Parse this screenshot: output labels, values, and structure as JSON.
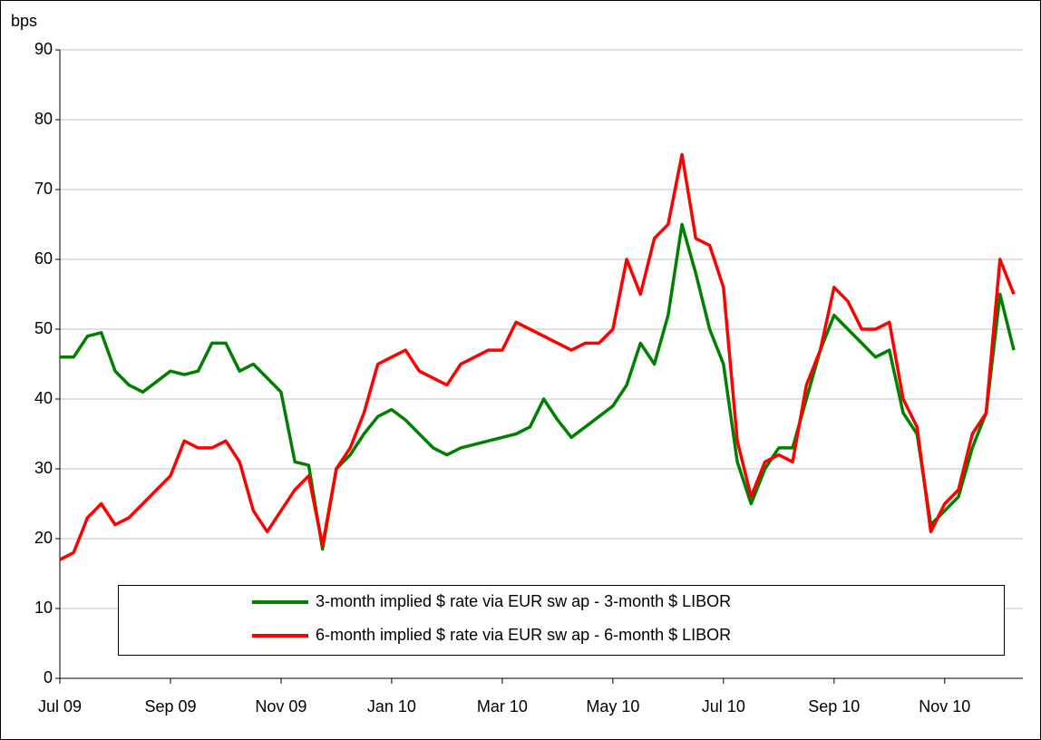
{
  "chart_data": {
    "type": "line",
    "y_label": "bps",
    "categories": [
      "Jul 09",
      null,
      null,
      null,
      null,
      null,
      null,
      null,
      "Sep 09",
      null,
      null,
      null,
      null,
      null,
      null,
      null,
      "Nov 09",
      null,
      null,
      null,
      null,
      null,
      null,
      null,
      "Jan 10",
      null,
      null,
      null,
      null,
      null,
      null,
      null,
      "Mar 10",
      null,
      null,
      null,
      null,
      null,
      null,
      null,
      "May 10",
      null,
      null,
      null,
      null,
      null,
      null,
      null,
      "Jul 10",
      null,
      null,
      null,
      null,
      null,
      null,
      null,
      "Sep 10",
      null,
      null,
      null,
      null,
      null,
      null,
      null,
      "Nov 10",
      null,
      null,
      null,
      null,
      null
    ],
    "series": [
      {
        "name": "3-month implied $ rate via EUR sw ap - 3-month $ LIBOR",
        "color": "#008000",
        "values": [
          46,
          46,
          49,
          49.5,
          44,
          42,
          41,
          42.5,
          44,
          43.5,
          44,
          48,
          48,
          44,
          45,
          43,
          41,
          31,
          30.5,
          18.5,
          30,
          32,
          35,
          37.5,
          38.5,
          37,
          35,
          33,
          32,
          33,
          33.5,
          34,
          34.5,
          35,
          36,
          40,
          37,
          34.5,
          36,
          37.5,
          39,
          42,
          48,
          45,
          52,
          65,
          58,
          50,
          45,
          31,
          25,
          30,
          33,
          33,
          40,
          47,
          52,
          50,
          48,
          46,
          47,
          38,
          35,
          22,
          24,
          26,
          33,
          38,
          55,
          47
        ]
      },
      {
        "name": "6-month implied $ rate via EUR sw ap - 6-month $ LIBOR",
        "color": "#ff0000",
        "values": [
          17,
          18,
          23,
          25,
          22,
          23,
          25,
          27,
          29,
          34,
          33,
          33,
          34,
          31,
          24,
          21,
          24,
          27,
          29,
          19,
          30,
          33,
          38,
          45,
          46,
          47,
          44,
          43,
          42,
          45,
          46,
          47,
          47,
          51,
          50,
          49,
          48,
          47,
          48,
          48,
          50,
          60,
          55,
          63,
          65,
          75,
          63,
          62,
          56,
          34,
          26,
          31,
          32,
          31,
          42,
          47,
          56,
          54,
          50,
          50,
          51,
          40,
          36,
          21,
          25,
          27,
          35,
          38,
          60,
          55
        ]
      }
    ],
    "ylim": [
      0,
      90
    ],
    "yticks": [
      0,
      10,
      20,
      30,
      40,
      50,
      60,
      70,
      80,
      90
    ],
    "grid": true
  }
}
